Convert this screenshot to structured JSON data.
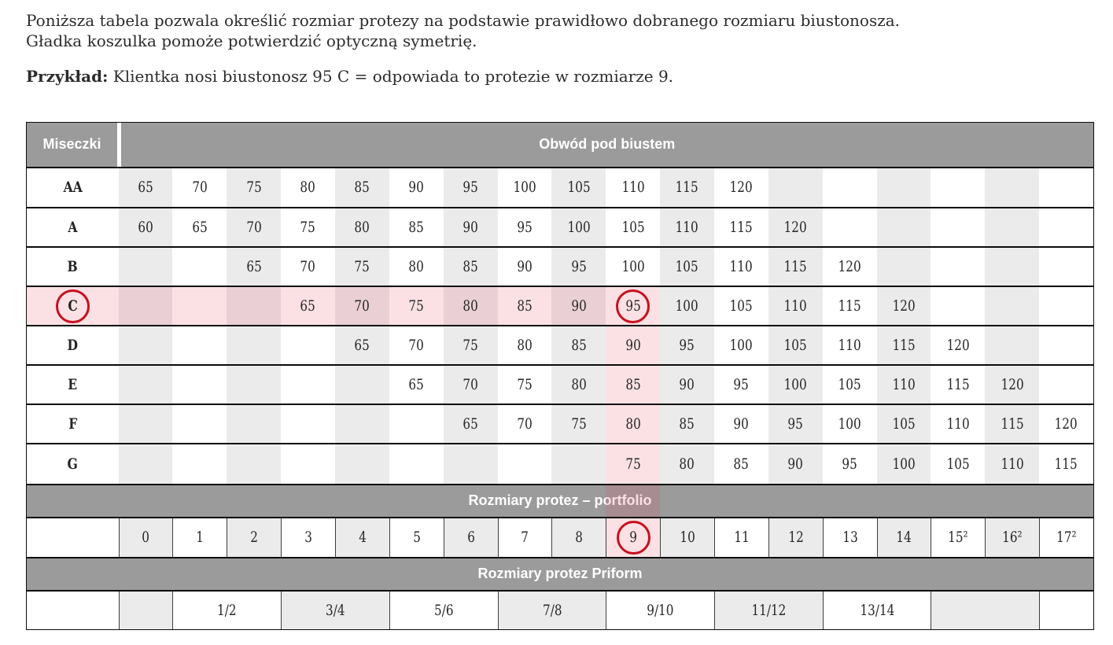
{
  "intro": {
    "line1": "Poniższa tabela pozwala określić rozmiar protezy na podstawie prawidłowo dobranego rozmiaru biustonosza.",
    "line2": "Gładka koszulka pomoże potwierdzić optyczną symetrię.",
    "example_label": "Przykład:",
    "example_text": " Klientka nosi biustonosz 95 C = odpowiada to protezie w rozmiarze 9."
  },
  "table": {
    "corner_label": "Miseczki",
    "band_header": "Obwód pod biustem",
    "portfolio_header": "Rozmiary protez – portfolio",
    "priform_header": "Rozmiary protez Priform",
    "columns": 18,
    "rows": [
      {
        "cup": "AA",
        "start": 1,
        "values": [
          "65",
          "70",
          "75",
          "80",
          "85",
          "90",
          "95",
          "100",
          "105",
          "110",
          "115",
          "120"
        ]
      },
      {
        "cup": "A",
        "start": 1,
        "values": [
          "60",
          "65",
          "70",
          "75",
          "80",
          "85",
          "90",
          "95",
          "100",
          "105",
          "110",
          "115",
          "120"
        ]
      },
      {
        "cup": "B",
        "start": 3,
        "values": [
          "65",
          "70",
          "75",
          "80",
          "85",
          "90",
          "95",
          "100",
          "105",
          "110",
          "115",
          "120"
        ]
      },
      {
        "cup": "C",
        "start": 4,
        "values": [
          "65",
          "70",
          "75",
          "80",
          "85",
          "90",
          "95",
          "100",
          "105",
          "110",
          "115",
          "120"
        ]
      },
      {
        "cup": "D",
        "start": 5,
        "values": [
          "65",
          "70",
          "75",
          "80",
          "85",
          "90",
          "95",
          "100",
          "105",
          "110",
          "115",
          "120"
        ]
      },
      {
        "cup": "E",
        "start": 6,
        "values": [
          "65",
          "70",
          "75",
          "80",
          "85",
          "90",
          "95",
          "100",
          "105",
          "110",
          "115",
          "120"
        ]
      },
      {
        "cup": "F",
        "start": 7,
        "values": [
          "65",
          "70",
          "75",
          "80",
          "85",
          "90",
          "95",
          "100",
          "105",
          "110",
          "115",
          "120"
        ]
      },
      {
        "cup": "G",
        "start": 10,
        "values": [
          "75",
          "80",
          "85",
          "90",
          "95",
          "100",
          "105",
          "110",
          "115"
        ]
      }
    ],
    "portfolio_values": [
      "0",
      "1",
      "2",
      "3",
      "4",
      "5",
      "6",
      "7",
      "8",
      "9",
      "10",
      "11",
      "12",
      "13",
      "14",
      "15²",
      "16²",
      "17²"
    ],
    "priform_cells": [
      {
        "label": "",
        "span": 1,
        "shaded": true
      },
      {
        "label": "1/2",
        "span": 2,
        "shaded": false
      },
      {
        "label": "3/4",
        "span": 2,
        "shaded": true
      },
      {
        "label": "5/6",
        "span": 2,
        "shaded": false
      },
      {
        "label": "7/8",
        "span": 2,
        "shaded": true
      },
      {
        "label": "9/10",
        "span": 2,
        "shaded": false
      },
      {
        "label": "11/12",
        "span": 2,
        "shaded": true
      },
      {
        "label": "13/14",
        "span": 2,
        "shaded": false
      },
      {
        "label": "",
        "span": 2,
        "shaded": true
      },
      {
        "label": "",
        "span": 1,
        "shaded": false
      }
    ],
    "highlight": {
      "row_cup": "C",
      "circled_cup": "C",
      "circled_bust_value": "95",
      "column_index": 10,
      "circled_portfolio_value": "9"
    },
    "colors": {
      "header_gray": "#9b9b9b",
      "stripe_gray": "#ebebeb",
      "highlight_pink": "#fbe1e4",
      "highlight_pink_on_stripe": "#ead0d4",
      "circle_red": "#c8101f",
      "border_black": "#0b0b0b"
    }
  }
}
